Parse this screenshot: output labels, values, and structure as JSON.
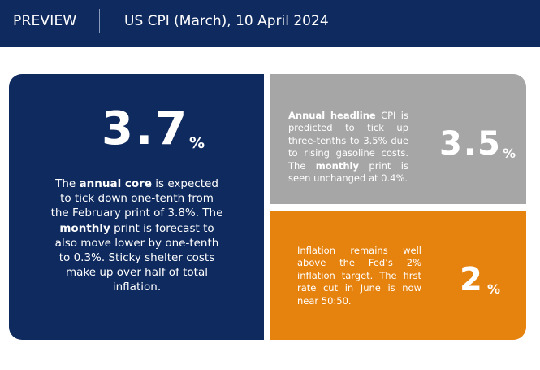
{
  "header": {
    "label": "PREVIEW",
    "title": "US CPI (March), 10 April 2024"
  },
  "core": {
    "figure": "3.7",
    "unit": "%",
    "text_1": "The ",
    "bold_1": "annual core",
    "text_2": " is expected to tick down one-tenth from the February print of 3.8%. The ",
    "bold_2": "monthly",
    "text_3": " print is forecast to also move lower by one-tenth to 0.3%. Sticky shelter costs make up over half of total inflation."
  },
  "headline": {
    "bold_1": "Annual headline",
    "text_1": " CPI is predicted to tick up three-tenths to 3.5% due to rising gasoline costs. The ",
    "bold_2": "monthly",
    "text_2": " print is seen unchanged at 0.4%.",
    "figure": "3.5",
    "unit": "%"
  },
  "fed": {
    "text": "Inflation remains well above the Fed’s 2% inflation target. The first rate cut in June is now near 50:50.",
    "figure": "2",
    "unit": "%"
  },
  "colors": {
    "navy": "#0f2a5e",
    "grey": "#a6a6a6",
    "orange": "#e6820e"
  }
}
